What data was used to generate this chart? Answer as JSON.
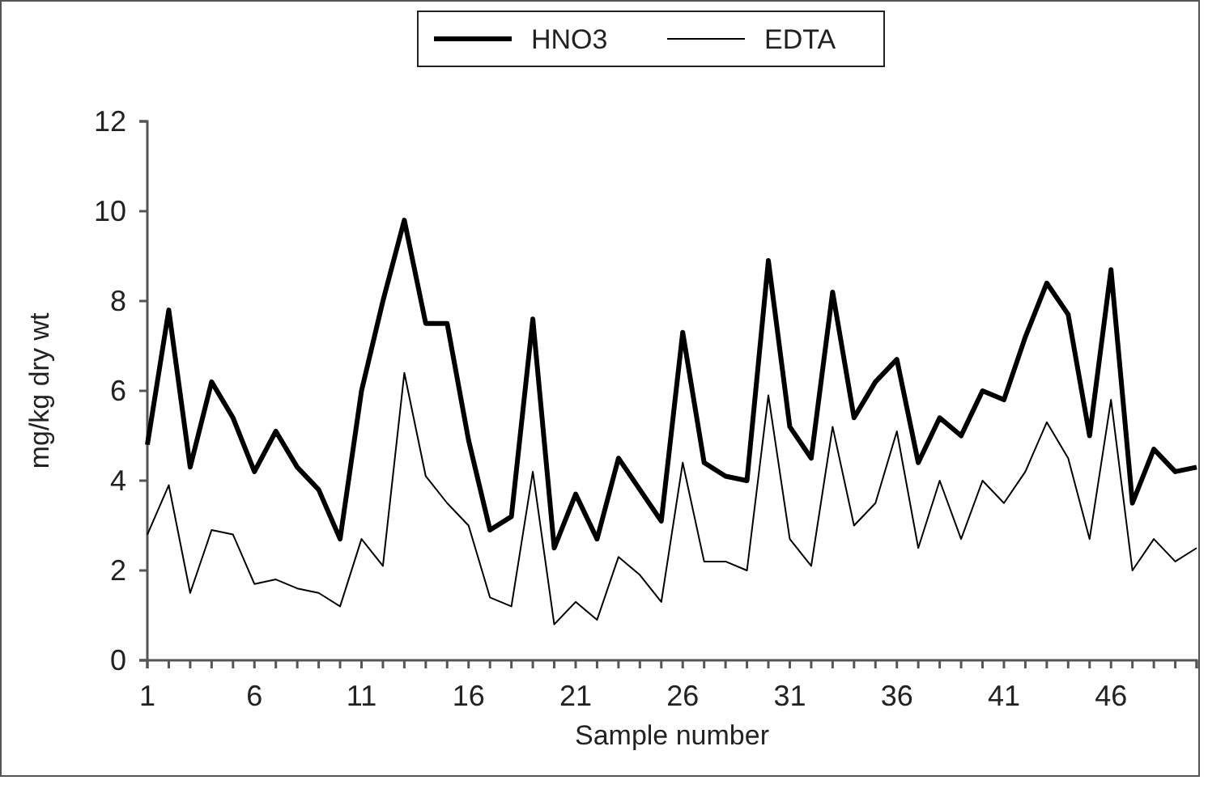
{
  "chart_data": {
    "type": "line",
    "xlabel": "Sample number",
    "ylabel": "mg/kg dry wt",
    "x": [
      1,
      2,
      3,
      4,
      5,
      6,
      7,
      8,
      9,
      10,
      11,
      12,
      13,
      14,
      15,
      16,
      17,
      18,
      19,
      20,
      21,
      22,
      23,
      24,
      25,
      26,
      27,
      28,
      29,
      30,
      31,
      32,
      33,
      34,
      35,
      36,
      37,
      38,
      39,
      40,
      41,
      42,
      43,
      44,
      45,
      46,
      47,
      48,
      49,
      50
    ],
    "xlim": [
      1,
      50
    ],
    "xticks": [
      1,
      {
        "value": 2,
        "label": null
      },
      {
        "value": 3,
        "label": null
      },
      {
        "value": 4,
        "label": null
      },
      {
        "value": 5,
        "label": null
      },
      6,
      {
        "value": 7,
        "label": null
      },
      {
        "value": 8,
        "label": null
      },
      {
        "value": 9,
        "label": null
      },
      {
        "value": 10,
        "label": null
      },
      11,
      {
        "value": 12,
        "label": null
      },
      {
        "value": 13,
        "label": null
      },
      {
        "value": 14,
        "label": null
      },
      {
        "value": 15,
        "label": null
      },
      16,
      {
        "value": 17,
        "label": null
      },
      {
        "value": 18,
        "label": null
      },
      {
        "value": 19,
        "label": null
      },
      {
        "value": 20,
        "label": null
      },
      21,
      {
        "value": 22,
        "label": null
      },
      {
        "value": 23,
        "label": null
      },
      {
        "value": 24,
        "label": null
      },
      {
        "value": 25,
        "label": null
      },
      26,
      {
        "value": 27,
        "label": null
      },
      {
        "value": 28,
        "label": null
      },
      {
        "value": 29,
        "label": null
      },
      {
        "value": 30,
        "label": null
      },
      31,
      {
        "value": 32,
        "label": null
      },
      {
        "value": 33,
        "label": null
      },
      {
        "value": 34,
        "label": null
      },
      {
        "value": 35,
        "label": null
      },
      36,
      {
        "value": 37,
        "label": null
      },
      {
        "value": 38,
        "label": null
      },
      {
        "value": 39,
        "label": null
      },
      {
        "value": 40,
        "label": null
      },
      41,
      {
        "value": 42,
        "label": null
      },
      {
        "value": 43,
        "label": null
      },
      {
        "value": 44,
        "label": null
      },
      {
        "value": 45,
        "label": null
      },
      46,
      {
        "value": 47,
        "label": null
      },
      {
        "value": 48,
        "label": null
      },
      {
        "value": 49,
        "label": null
      },
      {
        "value": 50,
        "label": null
      }
    ],
    "ylim": [
      0,
      12
    ],
    "yticks": [
      0,
      2,
      4,
      6,
      8,
      10,
      12
    ],
    "grid": false,
    "legend": "top",
    "marker": "none",
    "line_style": "solid",
    "series": [
      {
        "name": "HNO3",
        "color": "#000000",
        "values": [
          4.8,
          7.8,
          4.3,
          6.2,
          5.4,
          4.2,
          5.1,
          4.3,
          3.8,
          2.7,
          6.0,
          8.0,
          9.8,
          7.5,
          7.5,
          4.9,
          2.9,
          3.2,
          7.6,
          2.5,
          3.7,
          2.7,
          4.5,
          3.8,
          3.1,
          7.3,
          4.4,
          4.1,
          4.0,
          8.9,
          5.2,
          4.5,
          8.2,
          5.4,
          6.2,
          6.7,
          4.4,
          5.4,
          5.0,
          6.0,
          5.8,
          7.2,
          8.4,
          7.7,
          5.0,
          8.7,
          3.5,
          4.7,
          4.2,
          4.3
        ]
      },
      {
        "name": "EDTA",
        "color": "#000000",
        "values": [
          2.8,
          3.9,
          1.5,
          2.9,
          2.8,
          1.7,
          1.8,
          1.6,
          1.5,
          1.2,
          2.7,
          2.1,
          6.4,
          4.1,
          3.5,
          3.0,
          1.4,
          1.2,
          4.2,
          0.8,
          1.3,
          0.9,
          2.3,
          1.9,
          1.3,
          4.4,
          2.2,
          2.2,
          2.0,
          5.9,
          2.7,
          2.1,
          5.2,
          3.0,
          3.5,
          5.1,
          2.5,
          4.0,
          2.7,
          4.0,
          3.5,
          4.2,
          5.3,
          4.5,
          2.7,
          5.8,
          2.0,
          2.7,
          2.2,
          2.5
        ]
      }
    ]
  }
}
